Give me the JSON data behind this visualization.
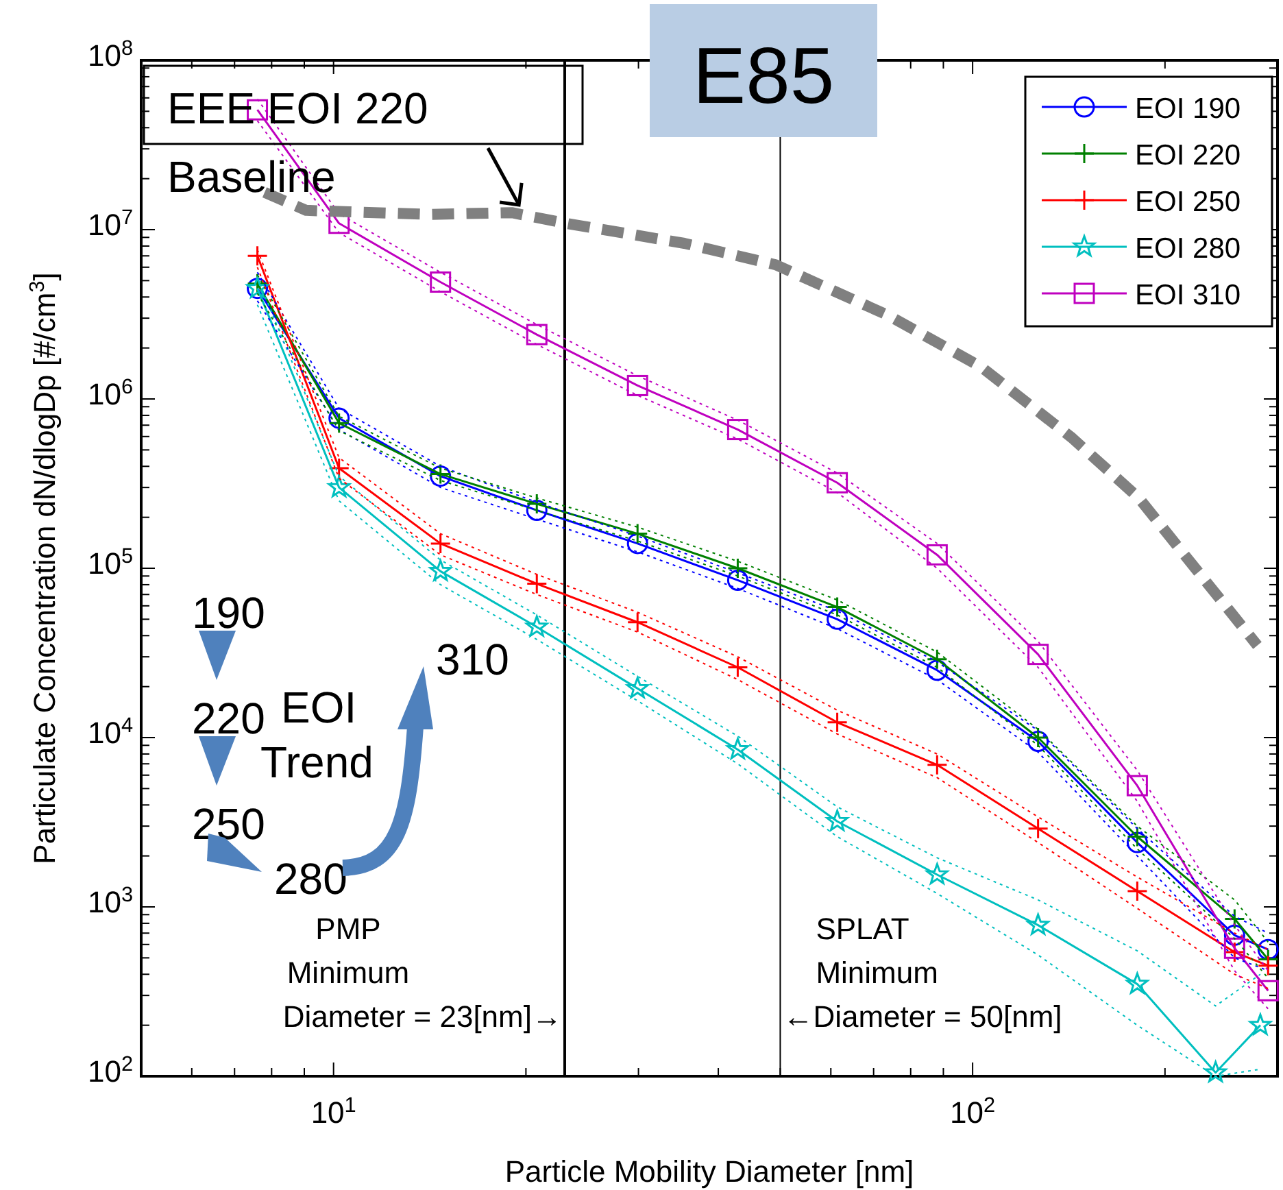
{
  "chart_data": {
    "type": "line",
    "title": "E85",
    "xlabel": "Particle Mobility Diameter [nm]",
    "ylabel": "Particulate Concentration dN/dlogDp [#/cm$^{3}$]",
    "log": "xy",
    "grid": false,
    "legend": "top right",
    "line_style": "solid",
    "xlim": [
      5,
      300
    ],
    "ylim": [
      100,
      100000000
    ],
    "xticks": [
      {
        "value": 6,
        "label": null
      },
      {
        "value": 7,
        "label": null
      },
      {
        "value": 8,
        "label": null
      },
      {
        "value": 9,
        "label": null
      },
      {
        "value": 10,
        "label": "10$^{1}$"
      },
      {
        "value": 20,
        "label": null
      },
      {
        "value": 30,
        "label": null
      },
      {
        "value": 40,
        "label": null
      },
      {
        "value": 50,
        "label": null
      },
      {
        "value": 60,
        "label": null
      },
      {
        "value": 70,
        "label": null
      },
      {
        "value": 80,
        "label": null
      },
      {
        "value": 90,
        "label": null
      },
      {
        "value": 100,
        "label": "10$^{2}$"
      },
      {
        "value": 200,
        "label": null
      }
    ],
    "yticks": [
      {
        "value": 100,
        "label": "10$^{2}$"
      },
      {
        "value": 200,
        "label": null
      },
      {
        "value": 300,
        "label": null
      },
      {
        "value": 400,
        "label": null
      },
      {
        "value": 500,
        "label": null
      },
      {
        "value": 600,
        "label": null
      },
      {
        "value": 700,
        "label": null
      },
      {
        "value": 800,
        "label": null
      },
      {
        "value": 900,
        "label": null
      },
      {
        "value": 1000,
        "label": "10$^{3}$"
      },
      {
        "value": 2000,
        "label": null
      },
      {
        "value": 3000,
        "label": null
      },
      {
        "value": 4000,
        "label": null
      },
      {
        "value": 5000,
        "label": null
      },
      {
        "value": 6000,
        "label": null
      },
      {
        "value": 7000,
        "label": null
      },
      {
        "value": 8000,
        "label": null
      },
      {
        "value": 9000,
        "label": null
      },
      {
        "value": 10000,
        "label": "10$^{4}$"
      },
      {
        "value": 20000,
        "label": null
      },
      {
        "value": 30000,
        "label": null
      },
      {
        "value": 40000,
        "label": null
      },
      {
        "value": 50000,
        "label": null
      },
      {
        "value": 60000,
        "label": null
      },
      {
        "value": 70000,
        "label": null
      },
      {
        "value": 80000,
        "label": null
      },
      {
        "value": 90000,
        "label": null
      },
      {
        "value": 100000,
        "label": "10$^{5}$"
      },
      {
        "value": 200000,
        "label": null
      },
      {
        "value": 300000,
        "label": null
      },
      {
        "value": 400000,
        "label": null
      },
      {
        "value": 500000,
        "label": null
      },
      {
        "value": 600000,
        "label": null
      },
      {
        "value": 700000,
        "label": null
      },
      {
        "value": 800000,
        "label": null
      },
      {
        "value": 900000,
        "label": null
      },
      {
        "value": 1000000,
        "label": "10$^{6}$"
      },
      {
        "value": 2000000,
        "label": null
      },
      {
        "value": 3000000,
        "label": null
      },
      {
        "value": 4000000,
        "label": null
      },
      {
        "value": 5000000,
        "label": null
      },
      {
        "value": 6000000,
        "label": null
      },
      {
        "value": 7000000,
        "label": null
      },
      {
        "value": 8000000,
        "label": null
      },
      {
        "value": 9000000,
        "label": null
      },
      {
        "value": 10000000,
        "label": "10$^{7}$"
      },
      {
        "value": 20000000,
        "label": null
      },
      {
        "value": 30000000,
        "label": null
      },
      {
        "value": 40000000,
        "label": null
      },
      {
        "value": 50000000,
        "label": null
      },
      {
        "value": 60000000,
        "label": null
      },
      {
        "value": 70000000,
        "label": null
      },
      {
        "value": 80000000,
        "label": null
      },
      {
        "value": 90000000,
        "label": null
      },
      {
        "value": 100000000,
        "label": "10$^{8}$"
      }
    ],
    "series": [
      {
        "name": "EOI 190",
        "color": "#0000ff",
        "marker": "circle",
        "x": [
          7.6,
          10.2,
          14.7,
          20.8,
          29.9,
          42.9,
          61.4,
          88,
          126.6,
          181,
          257,
          290
        ],
        "values": [
          4500000,
          770000,
          350000,
          220000,
          140000,
          85000,
          50000,
          25000,
          9500,
          2400,
          680,
          560
        ]
      },
      {
        "name": "EOI 220",
        "color": "#008000",
        "marker": "cross",
        "x": [
          7.6,
          10.2,
          14.7,
          20.8,
          29.9,
          42.9,
          61.4,
          88,
          126.6,
          181,
          257,
          290
        ],
        "values": [
          4800000,
          720000,
          360000,
          240000,
          160000,
          100000,
          59000,
          29000,
          10000,
          2600,
          850,
          490
        ]
      },
      {
        "name": "EOI 250",
        "color": "#ff0000",
        "marker": "cross",
        "x": [
          7.6,
          10.2,
          14.7,
          20.8,
          29.9,
          42.9,
          61.4,
          88,
          126.6,
          181,
          257,
          290
        ],
        "values": [
          7000000,
          390000,
          140000,
          81000,
          48000,
          26000,
          12300,
          6900,
          2900,
          1240,
          540,
          450
        ]
      },
      {
        "name": "EOI 280",
        "color": "#00bfbf",
        "marker": "star",
        "x": [
          7.6,
          10.2,
          14.7,
          20.8,
          29.9,
          42.9,
          61.4,
          88,
          126.6,
          181,
          240,
          282
        ],
        "values": [
          4500000,
          300000,
          96000,
          45000,
          19500,
          8500,
          3200,
          1550,
          780,
          350,
          105,
          200
        ]
      },
      {
        "name": "EOI 310",
        "color": "#bf00bf",
        "marker": "square",
        "x": [
          7.6,
          10.2,
          14.7,
          20.8,
          29.9,
          42.9,
          61.4,
          88,
          126.6,
          181,
          257,
          290
        ],
        "values": [
          51000000,
          10900000,
          4900000,
          2400000,
          1200000,
          660000,
          320000,
          120000,
          31000,
          5200,
          570,
          320
        ]
      },
      {
        "color": "#0000ff",
        "marker": "none",
        "line_style": "dotted",
        "x": [
          7.6,
          10.2,
          14.7,
          20.8,
          29.9,
          42.9,
          61.4,
          88,
          126.6,
          181,
          257,
          290
        ],
        "values": [
          3800000,
          660000,
          300000,
          195000,
          125000,
          76000,
          44000,
          22000,
          8200,
          2000,
          500,
          420
        ]
      },
      {
        "color": "#0000ff",
        "marker": "none",
        "line_style": "dotted",
        "x": [
          7.6,
          10.2,
          14.7,
          20.8,
          29.9,
          42.9,
          61.4,
          88,
          126.6,
          181,
          257,
          290
        ],
        "values": [
          5600000,
          880000,
          400000,
          245000,
          155000,
          94000,
          56000,
          28000,
          11000,
          2900,
          880,
          700
        ]
      },
      {
        "color": "#008000",
        "marker": "none",
        "line_style": "dotted",
        "x": [
          7.6,
          10.2,
          14.7,
          20.8,
          29.9,
          42.9,
          61.4,
          88,
          126.6,
          181,
          257,
          290
        ],
        "values": [
          4200000,
          650000,
          330000,
          220000,
          145000,
          90000,
          53000,
          26000,
          9000,
          2200,
          650,
          380
        ]
      },
      {
        "color": "#008000",
        "marker": "none",
        "line_style": "dotted",
        "x": [
          7.6,
          10.2,
          14.7,
          20.8,
          29.9,
          42.9,
          61.4,
          88,
          126.6,
          181,
          257,
          290
        ],
        "values": [
          5400000,
          790000,
          390000,
          260000,
          175000,
          110000,
          65000,
          32000,
          11200,
          3000,
          1100,
          620
        ]
      },
      {
        "color": "#ff0000",
        "marker": "none",
        "line_style": "dotted",
        "x": [
          7.6,
          10.2,
          14.7,
          20.8,
          29.9,
          42.9,
          61.4,
          88,
          126.6,
          181,
          257,
          290
        ],
        "values": [
          6000000,
          340000,
          120000,
          70000,
          42000,
          22000,
          10500,
          5800,
          2400,
          980,
          400,
          330
        ]
      },
      {
        "color": "#ff0000",
        "marker": "none",
        "line_style": "dotted",
        "x": [
          7.6,
          10.2,
          14.7,
          20.8,
          29.9,
          42.9,
          61.4,
          88,
          126.6,
          181,
          257,
          290
        ],
        "values": [
          7600000,
          450000,
          160000,
          92000,
          55000,
          30000,
          14500,
          8000,
          3400,
          1500,
          700,
          560
        ]
      },
      {
        "color": "#00bfbf",
        "marker": "none",
        "line_style": "dotted",
        "x": [
          7.6,
          10.2,
          14.7,
          20.8,
          29.9,
          42.9,
          61.4,
          88,
          126.6,
          181,
          240,
          282
        ],
        "values": [
          3600000,
          250000,
          80000,
          38000,
          16500,
          7000,
          2600,
          1200,
          520,
          200,
          100,
          110
        ]
      },
      {
        "color": "#00bfbf",
        "marker": "none",
        "line_style": "dotted",
        "x": [
          7.6,
          10.2,
          14.7,
          20.8,
          29.9,
          42.9,
          61.4,
          88,
          126.6,
          181,
          240,
          282
        ],
        "values": [
          5200000,
          350000,
          112000,
          53000,
          23000,
          10200,
          3900,
          1950,
          1100,
          550,
          260,
          400
        ]
      },
      {
        "color": "#bf00bf",
        "marker": "none",
        "line_style": "dotted",
        "x": [
          7.6,
          10.2,
          14.7,
          20.8,
          29.9,
          42.9,
          61.4,
          88,
          126.6,
          181,
          257,
          290
        ],
        "values": [
          44000000,
          9600000,
          4300000,
          2100000,
          1050000,
          580000,
          280000,
          100000,
          26000,
          4200,
          420,
          250
        ]
      },
      {
        "color": "#bf00bf",
        "marker": "none",
        "line_style": "dotted",
        "x": [
          7.6,
          10.2,
          14.7,
          20.8,
          29.9,
          42.9,
          61.4,
          88,
          126.6,
          181,
          257,
          290
        ],
        "values": [
          59000000,
          12400000,
          5600000,
          2750000,
          1370000,
          750000,
          365000,
          140000,
          37000,
          6400,
          780,
          420
        ]
      },
      {
        "color": "#808080",
        "marker": "none",
        "line_style": "dashed",
        "x": [
          7.8,
          9.06,
          14.1,
          19,
          23.1,
          35.4,
          49.2,
          74,
          103,
          143,
          182,
          279
        ],
        "values": [
          16600000,
          13000000,
          12300000,
          12600000,
          10900000,
          8300000,
          6200000,
          3100000,
          1550000,
          590000,
          260000,
          35000
        ]
      }
    ],
    "ref_lines": [
      {
        "axis": "x",
        "value": 23,
        "label": "PMP\nMinimum\nDiameter = 23[nm]→",
        "color": "#000000"
      },
      {
        "axis": "x",
        "value": 50,
        "label": "SPLAT\nMinimum\n←Diameter = 50[nm]",
        "color": "#000000"
      }
    ],
    "annotations": [
      {
        "text": "EEE EOI 220\nBaseline",
        "x": 19.5,
        "y": 14000000
      },
      "190",
      "220",
      "250",
      "280",
      "310",
      "EOI\nTrend"
    ]
  }
}
